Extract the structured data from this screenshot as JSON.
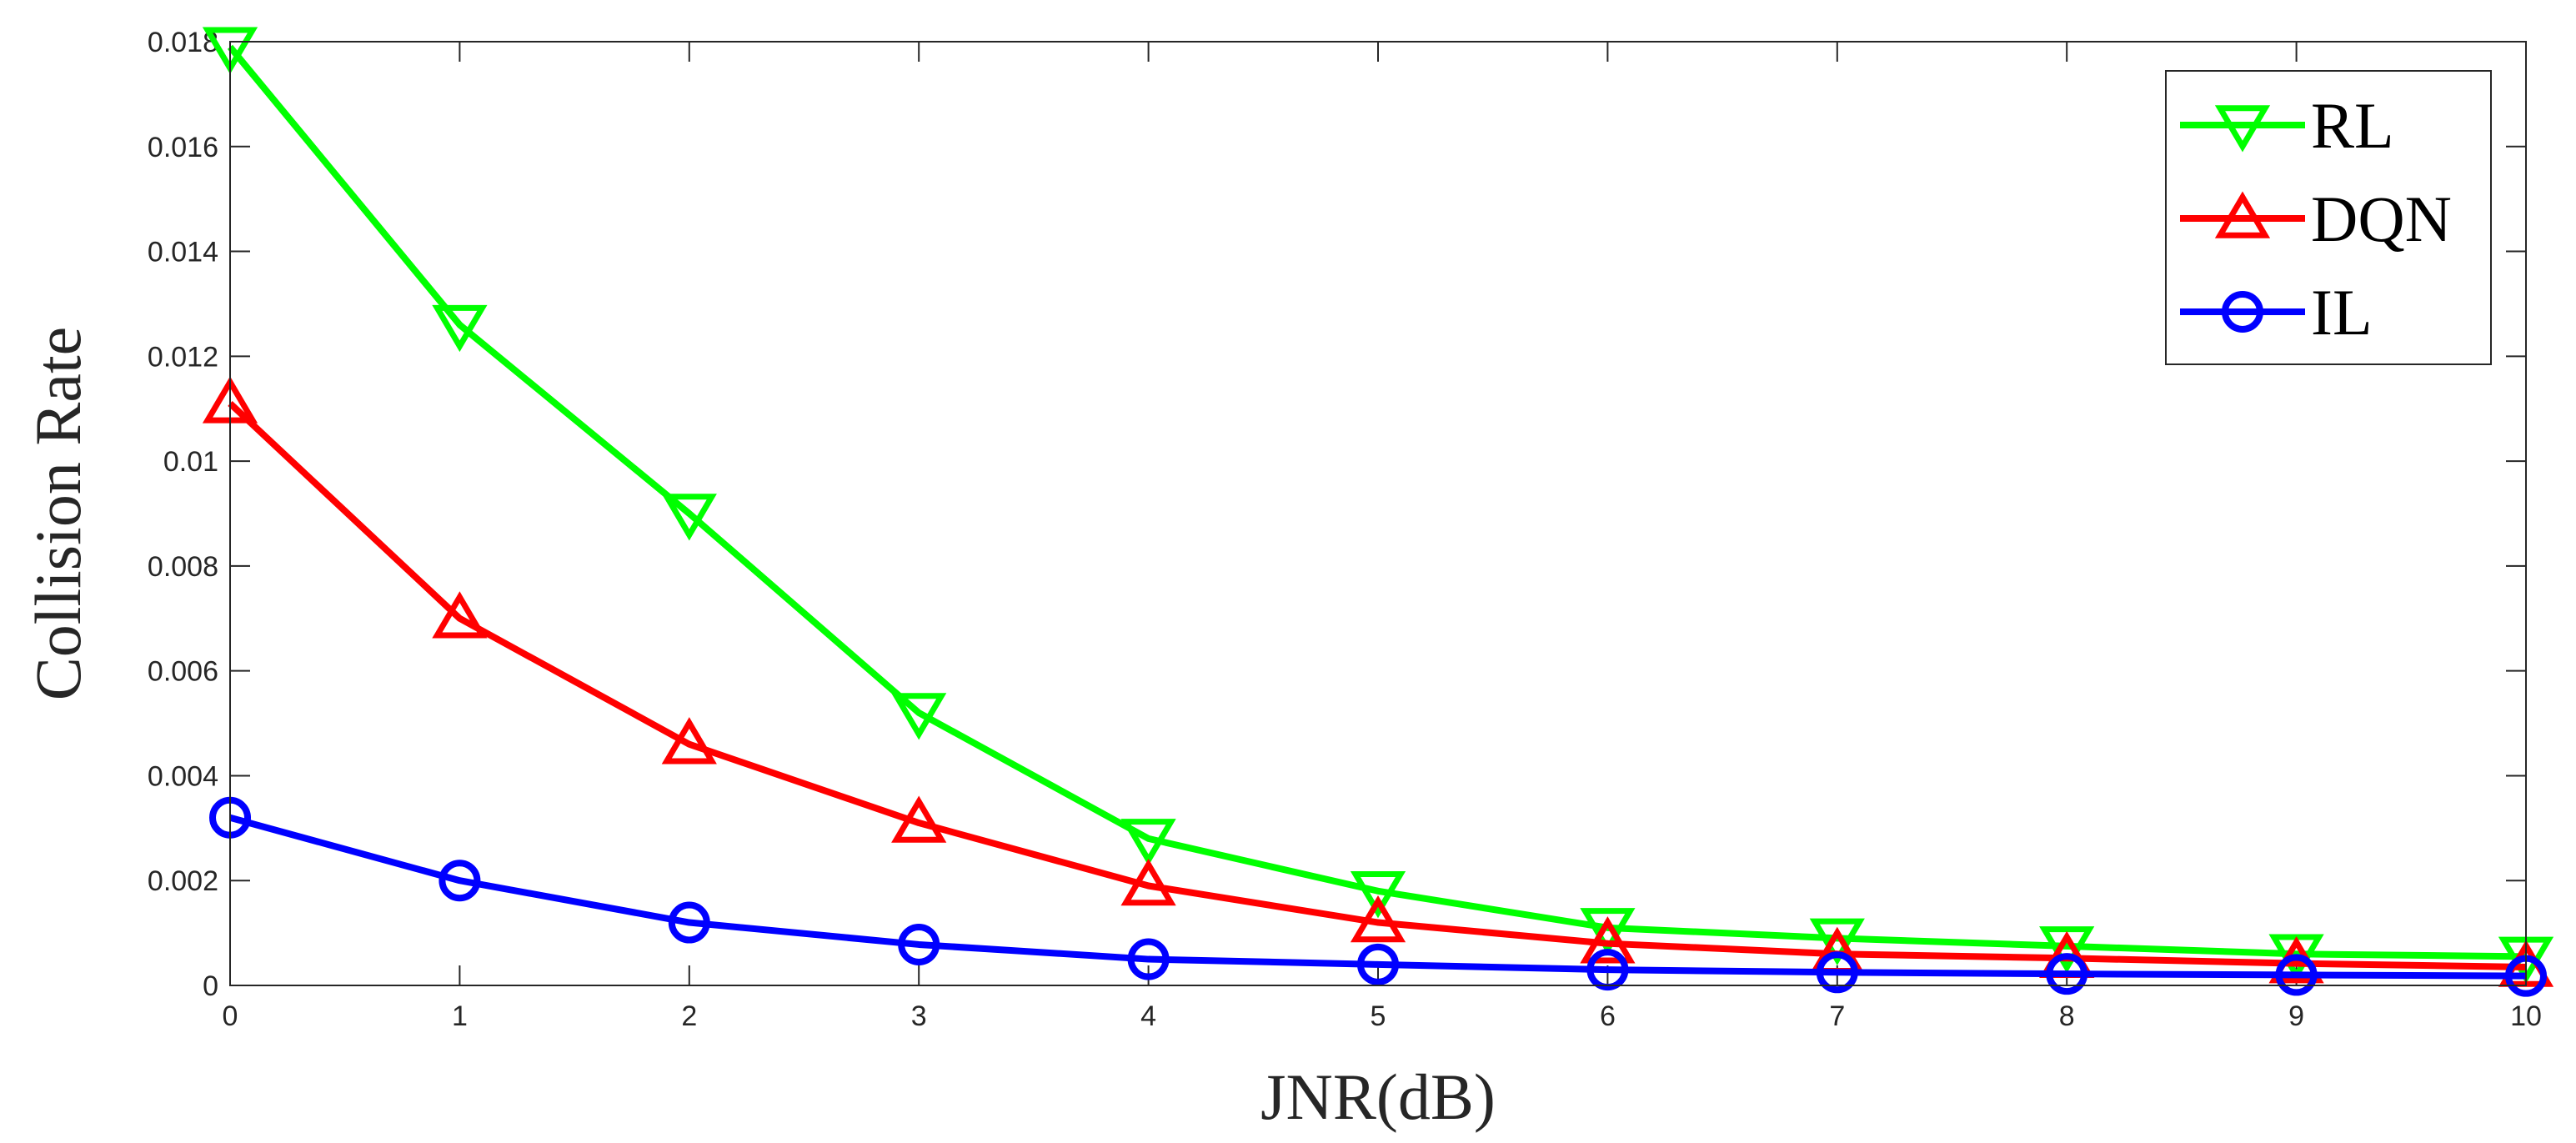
{
  "chart_data": {
    "type": "line",
    "title": "",
    "xlabel": "JNR(dB)",
    "ylabel": "Collision Rate",
    "xlim": [
      0,
      10
    ],
    "ylim": [
      0,
      0.018
    ],
    "x": [
      0,
      1,
      2,
      3,
      4,
      5,
      6,
      7,
      8,
      9,
      10
    ],
    "x_ticks": [
      "0",
      "1",
      "2",
      "3",
      "4",
      "5",
      "6",
      "7",
      "8",
      "9",
      "10"
    ],
    "y_ticks": [
      "0",
      "0.002",
      "0.004",
      "0.006",
      "0.008",
      "0.01",
      "0.012",
      "0.014",
      "0.016",
      "0.018"
    ],
    "grid": false,
    "legend_position": "top-right",
    "series": [
      {
        "name": "RL",
        "color": "#00ff00",
        "marker": "triangle-down",
        "values": [
          0.0179,
          0.0126,
          0.009,
          0.0052,
          0.0028,
          0.0018,
          0.0011,
          0.0009,
          0.00075,
          0.0006,
          0.00055
        ]
      },
      {
        "name": "DQN",
        "color": "#ff0000",
        "marker": "triangle-up",
        "values": [
          0.0111,
          0.007,
          0.0046,
          0.0031,
          0.0019,
          0.0012,
          0.0008,
          0.0006,
          0.00052,
          0.00042,
          0.00035
        ]
      },
      {
        "name": "IL",
        "color": "#0000ff",
        "marker": "circle",
        "values": [
          0.0032,
          0.002,
          0.0012,
          0.00078,
          0.0005,
          0.0004,
          0.0003,
          0.00025,
          0.00022,
          0.0002,
          0.00018
        ]
      }
    ]
  }
}
